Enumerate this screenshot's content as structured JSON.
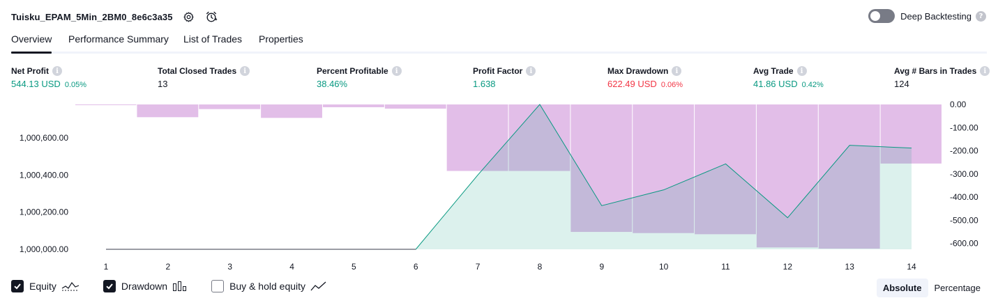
{
  "header": {
    "strategy_name": "Tuisku_EPAM_5Min_2BM0_8e6c3a35",
    "deep_backtesting_label": "Deep Backtesting",
    "deep_backtesting_enabled": false,
    "icons": [
      "settings-icon",
      "alert-clock-icon",
      "help-icon"
    ]
  },
  "tabs": [
    "Overview",
    "Performance Summary",
    "List of Trades",
    "Properties"
  ],
  "active_tab": "Overview",
  "stats": [
    {
      "label": "Net Profit",
      "value": "544.13 USD",
      "pct": "0.05%",
      "color": "#089981"
    },
    {
      "label": "Total Closed Trades",
      "value": "13",
      "pct": "",
      "color": "#131722"
    },
    {
      "label": "Percent Profitable",
      "value": "38.46%",
      "pct": "",
      "color": "#089981"
    },
    {
      "label": "Profit Factor",
      "value": "1.638",
      "pct": "",
      "color": "#089981"
    },
    {
      "label": "Max Drawdown",
      "value": "622.49 USD",
      "pct": "0.06%",
      "color": "#f23645"
    },
    {
      "label": "Avg Trade",
      "value": "41.86 USD",
      "pct": "0.42%",
      "color": "#089981"
    },
    {
      "label": "Avg # Bars in Trades",
      "value": "124",
      "pct": "",
      "color": "#131722"
    }
  ],
  "chart_data": {
    "type": "area",
    "x": [
      1,
      2,
      3,
      4,
      5,
      6,
      7,
      8,
      9,
      10,
      11,
      12,
      13,
      14
    ],
    "series": [
      {
        "name": "Equity",
        "color": "#089981",
        "values": [
          1000000,
          1000000,
          1000000,
          1000000,
          1000000,
          1000000,
          1000400,
          1000780,
          1000235,
          1000320,
          1000460,
          1000170,
          1000560,
          1000545
        ]
      },
      {
        "name": "Drawdown",
        "color": "#ce93d8",
        "values": [
          -2,
          -55,
          -20,
          -58,
          -12,
          -18,
          -287,
          -287,
          -550,
          -555,
          -560,
          -617,
          -622,
          -255
        ]
      }
    ],
    "left_axis": {
      "ticks": [
        "1,000,000.00",
        "1,000,200.00",
        "1,000,400.00",
        "1,000,600.00"
      ],
      "values": [
        1000000,
        1000200,
        1000400,
        1000600
      ],
      "range": [
        1000000,
        1000780
      ]
    },
    "right_axis": {
      "ticks": [
        "0.00",
        "-100.00",
        "-200.00",
        "-300.00",
        "-400.00",
        "-500.00",
        "-600.00"
      ],
      "values": [
        0,
        -100,
        -200,
        -300,
        -400,
        -500,
        -600
      ],
      "range": [
        -625,
        0
      ]
    },
    "x_ticks": [
      "1",
      "2",
      "3",
      "4",
      "5",
      "6",
      "7",
      "8",
      "9",
      "10",
      "11",
      "12",
      "13",
      "14"
    ]
  },
  "legend": [
    {
      "label": "Equity",
      "checked": true,
      "icon": "equity-line-icon"
    },
    {
      "label": "Drawdown",
      "checked": true,
      "icon": "drawdown-bars-icon"
    },
    {
      "label": "Buy & hold equity",
      "checked": false,
      "icon": "buy-hold-line-icon"
    }
  ],
  "mode_buttons": [
    "Absolute",
    "Percentage"
  ],
  "active_mode": "Absolute"
}
